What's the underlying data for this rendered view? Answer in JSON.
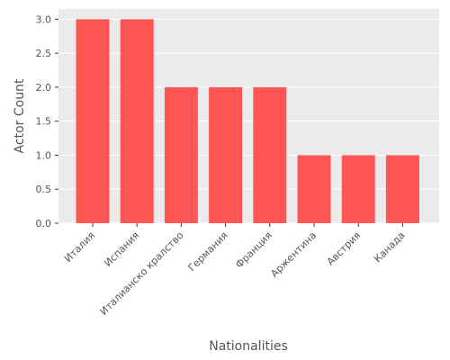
{
  "chart_data": {
    "type": "bar",
    "categories": [
      "Италия",
      "Испания",
      "Италианско кралство",
      "Германия",
      "Франция",
      "Аржентина",
      "Австрия",
      "Канада"
    ],
    "values": [
      3,
      3,
      2,
      2,
      2,
      1,
      1,
      1
    ],
    "xlabel": "Nationalities",
    "ylabel": "Actor Count",
    "ylim": [
      0,
      3.15
    ],
    "yticks": [
      0.0,
      0.5,
      1.0,
      1.5,
      2.0,
      2.5,
      3.0
    ],
    "ytick_labels": [
      "0.0",
      "0.5",
      "1.0",
      "1.5",
      "2.0",
      "2.5",
      "3.0"
    ],
    "grid": true,
    "bar_color": "#ff5555",
    "background_color": "#ebebeb",
    "grid_color": "#ffffff"
  }
}
